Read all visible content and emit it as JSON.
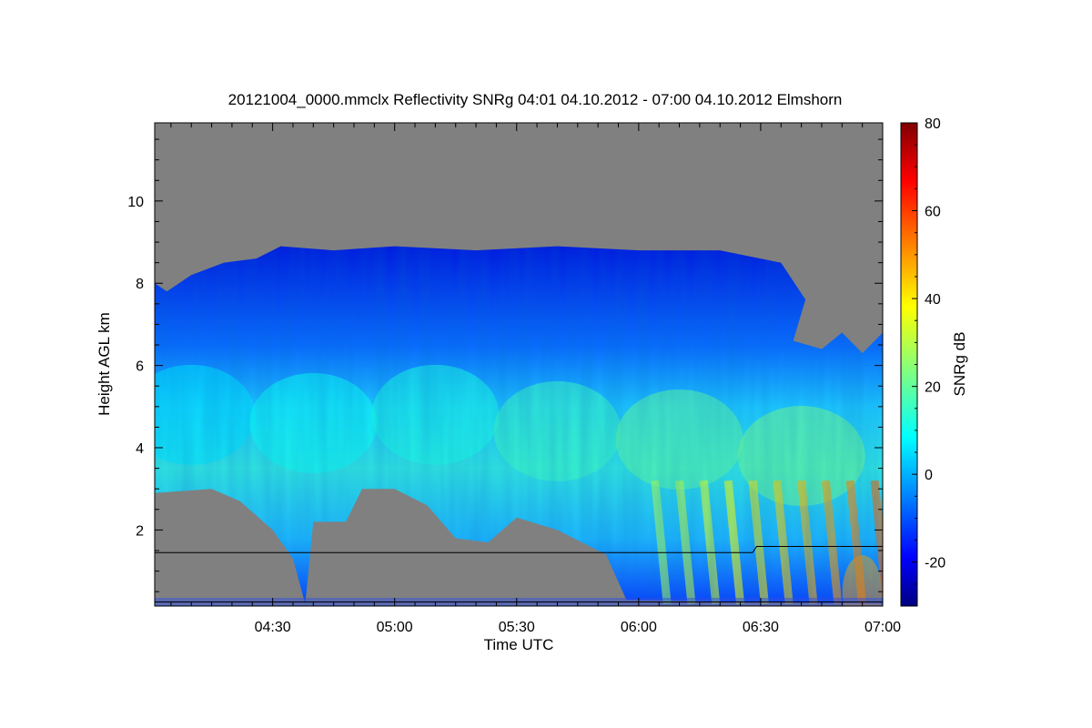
{
  "chart_data": {
    "type": "heatmap",
    "title": "20121004_0000.mmclx Reflectivity SNRg   04:01 04.10.2012 - 07:00 04.10.2012 Elmshorn",
    "xlabel": "Time UTC",
    "ylabel": "Height AGL km",
    "colorbar_label": "SNRg dB",
    "x_range_minutes_utc": [
      241,
      420
    ],
    "x_ticks": [
      {
        "label": "04:30",
        "minutes": 270
      },
      {
        "label": "05:00",
        "minutes": 300
      },
      {
        "label": "05:30",
        "minutes": 330
      },
      {
        "label": "06:00",
        "minutes": 360
      },
      {
        "label": "06:30",
        "minutes": 390
      },
      {
        "label": "07:00",
        "minutes": 420
      }
    ],
    "ylim_km": [
      0.15,
      11.9
    ],
    "y_ticks": [
      2,
      4,
      6,
      8,
      10
    ],
    "colorbar_range_db": [
      -30,
      80
    ],
    "colorbar_ticks": [
      -20,
      0,
      20,
      40,
      60,
      80
    ],
    "no_signal_color": "#808080",
    "colormap": [
      "#000080",
      "#0000ff",
      "#00ffff",
      "#ffff00",
      "#ff0000",
      "#800000"
    ],
    "cloud_top_km": [
      {
        "t": 241,
        "h": 8.0
      },
      {
        "t": 244,
        "h": 7.8
      },
      {
        "t": 250,
        "h": 8.2
      },
      {
        "t": 258,
        "h": 8.5
      },
      {
        "t": 266,
        "h": 8.6
      },
      {
        "t": 272,
        "h": 8.9
      },
      {
        "t": 285,
        "h": 8.8
      },
      {
        "t": 300,
        "h": 8.9
      },
      {
        "t": 320,
        "h": 8.8
      },
      {
        "t": 340,
        "h": 8.9
      },
      {
        "t": 360,
        "h": 8.8
      },
      {
        "t": 380,
        "h": 8.8
      },
      {
        "t": 395,
        "h": 8.5
      },
      {
        "t": 401,
        "h": 7.6
      },
      {
        "t": 398,
        "h": 6.6
      },
      {
        "t": 405,
        "h": 6.4
      },
      {
        "t": 410,
        "h": 6.8
      },
      {
        "t": 415,
        "h": 6.3
      },
      {
        "t": 420,
        "h": 6.8
      }
    ],
    "cloud_base_km": [
      {
        "t": 241,
        "h": 2.9
      },
      {
        "t": 255,
        "h": 3.0
      },
      {
        "t": 262,
        "h": 2.7
      },
      {
        "t": 270,
        "h": 2.0
      },
      {
        "t": 275,
        "h": 1.3
      },
      {
        "t": 278,
        "h": 0.2
      },
      {
        "t": 280,
        "h": 2.2
      },
      {
        "t": 288,
        "h": 2.2
      },
      {
        "t": 292,
        "h": 3.0
      },
      {
        "t": 300,
        "h": 3.0
      },
      {
        "t": 308,
        "h": 2.6
      },
      {
        "t": 315,
        "h": 1.8
      },
      {
        "t": 323,
        "h": 1.7
      },
      {
        "t": 330,
        "h": 2.3
      },
      {
        "t": 340,
        "h": 2.0
      },
      {
        "t": 352,
        "h": 1.4
      },
      {
        "t": 357,
        "h": 0.3
      },
      {
        "t": 420,
        "h": 0.2
      }
    ],
    "core_snr_db": [
      {
        "t": 250,
        "h": 4.8,
        "v": 6
      },
      {
        "t": 280,
        "h": 4.6,
        "v": 10
      },
      {
        "t": 310,
        "h": 4.8,
        "v": 12
      },
      {
        "t": 340,
        "h": 4.4,
        "v": 16
      },
      {
        "t": 370,
        "h": 4.2,
        "v": 20
      },
      {
        "t": 400,
        "h": 3.8,
        "v": 22
      },
      {
        "t": 415,
        "h": 0.5,
        "v": 48
      }
    ],
    "reference_line_km": [
      {
        "t": 241,
        "h": 1.45
      },
      {
        "t": 388,
        "h": 1.45
      },
      {
        "t": 389,
        "h": 1.6
      },
      {
        "t": 420,
        "h": 1.6
      }
    ]
  }
}
